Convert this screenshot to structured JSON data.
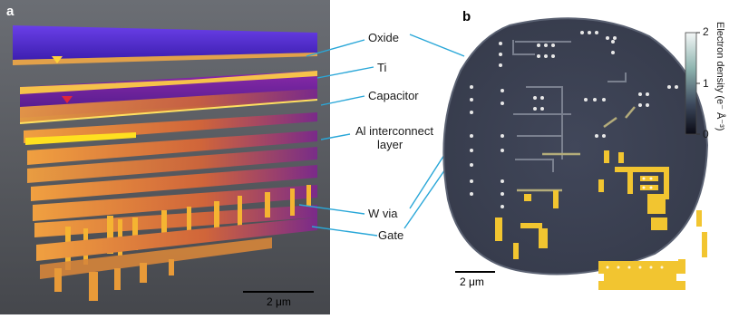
{
  "panel_a": {
    "letter": "a",
    "scale_bar": "2 μm"
  },
  "panel_b": {
    "letter": "b",
    "scale_bar": "2 μm"
  },
  "labels": {
    "oxide": "Oxide",
    "ti": "Ti",
    "capacitor": "Capacitor",
    "al_line1": "Al interconnect",
    "al_line2": "layer",
    "w_via": "W via",
    "gate": "Gate"
  },
  "colorbar": {
    "title": "Electron density (e⁻ Å⁻³)",
    "ticks": [
      "2",
      "1",
      "0"
    ],
    "min": 0,
    "max": 2
  },
  "colors": {
    "oxide_purple": "#5a2fd8",
    "layer_orange": "#e8952c",
    "metal_yellow": "#f2c530",
    "leader_blue": "#2aa7d8",
    "disk_gray": "#3d4353"
  }
}
